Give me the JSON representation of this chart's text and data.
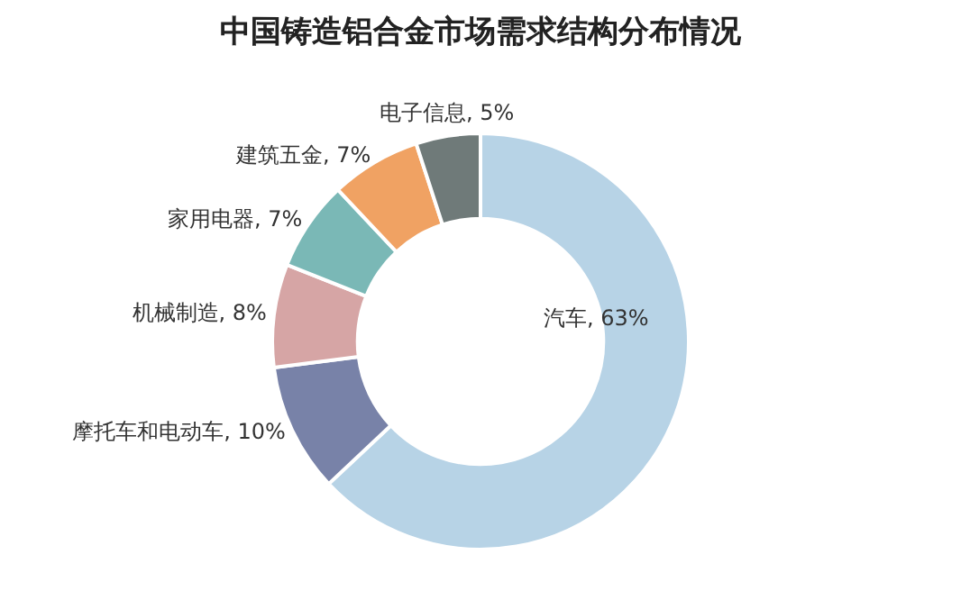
{
  "chart_data": {
    "type": "donut",
    "title": "中国铸造铝合金市场需求结构分布情况",
    "categories": [
      "汽车",
      "摩托车和电动车",
      "机械制造",
      "家用电器",
      "建筑五金",
      "电子信息"
    ],
    "values": [
      63,
      10,
      8,
      7,
      7,
      5
    ],
    "colors": [
      "#b7d3e6",
      "#7882a8",
      "#d6a5a5",
      "#7ab8b6",
      "#f0a263",
      "#6f7a79"
    ],
    "value_labels": [
      ", 63%",
      ", 10%",
      ", 8%",
      ", 7%",
      ", 7%",
      ", 5%"
    ],
    "legend": false
  }
}
